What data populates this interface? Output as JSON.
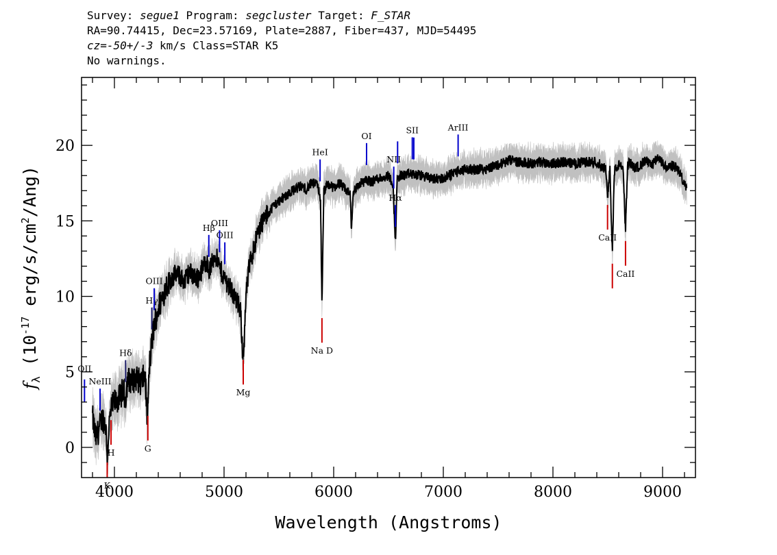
{
  "header": {
    "survey_label": "Survey:",
    "survey": "segue1",
    "program_label": "Program:",
    "program": "segcluster",
    "target_label": "Target:",
    "target": "F_STAR",
    "line2": "RA=90.74415, Dec=23.57169, Plate=2887, Fiber=437, MJD=54495",
    "cz_label": "cz=",
    "cz": "-50+/-3",
    "cz_rest": " km/s Class=STAR K5",
    "line4": "No warnings."
  },
  "chart_data": {
    "type": "line",
    "title": "",
    "xlabel": "Wavelength (Angstroms)",
    "ylabel": "f_λ (10^-17 erg/s/cm^2/Ang)",
    "xlim": [
      3700,
      9300
    ],
    "ylim": [
      -2,
      24.5
    ],
    "xticks": [
      4000,
      5000,
      6000,
      7000,
      8000,
      9000
    ],
    "yticks": [
      0,
      5,
      10,
      15,
      20
    ],
    "colors": {
      "flux": "#000000",
      "noise_band": "#c0c0c0",
      "emission_lines": "#0000cc",
      "absorption_lines": "#cc0000",
      "hydrogen_lines": "#1a1a66"
    },
    "series": [
      {
        "role": "flux",
        "x": [
          3800,
          3830,
          3860,
          3890,
          3920,
          3935,
          3950,
          3970,
          4000,
          4040,
          4080,
          4100,
          4120,
          4160,
          4200,
          4240,
          4280,
          4300,
          4320,
          4360,
          4400,
          4440,
          4480,
          4520,
          4560,
          4600,
          4640,
          4680,
          4720,
          4760,
          4800,
          4840,
          4860,
          4880,
          4920,
          4960,
          5000,
          5040,
          5080,
          5120,
          5150,
          5170,
          5183,
          5200,
          5230,
          5270,
          5300,
          5340,
          5400,
          5450,
          5500,
          5550,
          5600,
          5650,
          5700,
          5750,
          5800,
          5850,
          5880,
          5893,
          5910,
          5950,
          6000,
          6050,
          6100,
          6150,
          6162,
          6180,
          6250,
          6300,
          6350,
          6400,
          6450,
          6500,
          6540,
          6563,
          6580,
          6620,
          6700,
          6800,
          6900,
          7000,
          7100,
          7200,
          7300,
          7400,
          7500,
          7600,
          7700,
          7800,
          7900,
          8000,
          8100,
          8200,
          8300,
          8400,
          8480,
          8500,
          8520,
          8542,
          8560,
          8600,
          8640,
          8662,
          8680,
          8700,
          8750,
          8800,
          8850,
          8900,
          8950,
          9000,
          9050,
          9100,
          9150,
          9200,
          9220
        ],
        "y": [
          2.0,
          0.6,
          1.2,
          2.0,
          1.5,
          -0.5,
          1.3,
          2.5,
          3.0,
          3.2,
          3.8,
          3.2,
          4.5,
          4.4,
          4.6,
          4.3,
          4.8,
          1.8,
          5.5,
          8.0,
          9.2,
          10.0,
          10.8,
          11.2,
          11.5,
          11.3,
          11.0,
          11.6,
          11.4,
          11.2,
          11.8,
          12.4,
          11.6,
          12.0,
          12.8,
          11.9,
          11.2,
          10.8,
          10.2,
          9.6,
          9.0,
          6.2,
          6.8,
          10.0,
          12.0,
          13.2,
          14.0,
          14.8,
          15.5,
          16.0,
          16.3,
          16.6,
          16.9,
          17.1,
          17.3,
          17.1,
          17.5,
          17.4,
          16.5,
          9.2,
          17.0,
          17.4,
          17.2,
          17.5,
          17.1,
          16.8,
          14.5,
          17.0,
          17.5,
          17.7,
          17.6,
          17.8,
          17.9,
          18.0,
          17.5,
          13.6,
          17.8,
          18.0,
          18.1,
          18.0,
          17.8,
          17.8,
          18.2,
          18.4,
          18.4,
          18.5,
          18.7,
          19.0,
          18.9,
          18.8,
          18.9,
          18.8,
          18.9,
          18.8,
          18.9,
          18.9,
          18.4,
          16.5,
          18.5,
          12.8,
          18.3,
          18.7,
          18.5,
          14.3,
          18.6,
          18.9,
          18.5,
          18.7,
          19.0,
          18.6,
          19.2,
          18.8,
          18.5,
          18.7,
          18.3,
          17.4,
          17.0
        ]
      }
    ],
    "line_markers": [
      {
        "label": "OII",
        "wavelength": 3727,
        "type": "emission"
      },
      {
        "label": "NeIII",
        "wavelength": 3869,
        "type": "emission"
      },
      {
        "label": "K",
        "wavelength": 3934,
        "type": "absorption"
      },
      {
        "label": "H",
        "wavelength": 3969,
        "type": "absorption"
      },
      {
        "label": "Hδ",
        "wavelength": 4102,
        "type": "hydrogen"
      },
      {
        "label": "G",
        "wavelength": 4305,
        "type": "absorption"
      },
      {
        "label": "Hγ",
        "wavelength": 4341,
        "type": "hydrogen"
      },
      {
        "label": "OIII",
        "wavelength": 4363,
        "type": "emission"
      },
      {
        "label": "Hβ",
        "wavelength": 4861,
        "type": "emission"
      },
      {
        "label": "OIII",
        "wavelength": 4959,
        "type": "emission"
      },
      {
        "label": "OIII",
        "wavelength": 5007,
        "type": "emission"
      },
      {
        "label": "Mg",
        "wavelength": 5175,
        "type": "absorption"
      },
      {
        "label": "HeI",
        "wavelength": 5876,
        "type": "emission"
      },
      {
        "label": "Na  D",
        "wavelength": 5893,
        "type": "absorption"
      },
      {
        "label": "OI",
        "wavelength": 6300,
        "type": "emission"
      },
      {
        "label": "NII",
        "wavelength": 6548,
        "type": "emission"
      },
      {
        "label": "Hα",
        "wavelength": 6563,
        "type": "emission"
      },
      {
        "label": "NII",
        "wavelength": 6583,
        "type": "emission"
      },
      {
        "label": "SII",
        "wavelength": 6717,
        "type": "emission"
      },
      {
        "label": "SII",
        "wavelength": 6731,
        "type": "emission"
      },
      {
        "label": "ArIII",
        "wavelength": 7135,
        "type": "emission"
      },
      {
        "label": "CaII",
        "wavelength": 8498,
        "type": "absorption"
      },
      {
        "label": "CaII",
        "wavelength": 8542,
        "type": "absorption"
      },
      {
        "label": "CaII",
        "wavelength": 8662,
        "type": "absorption"
      }
    ]
  }
}
